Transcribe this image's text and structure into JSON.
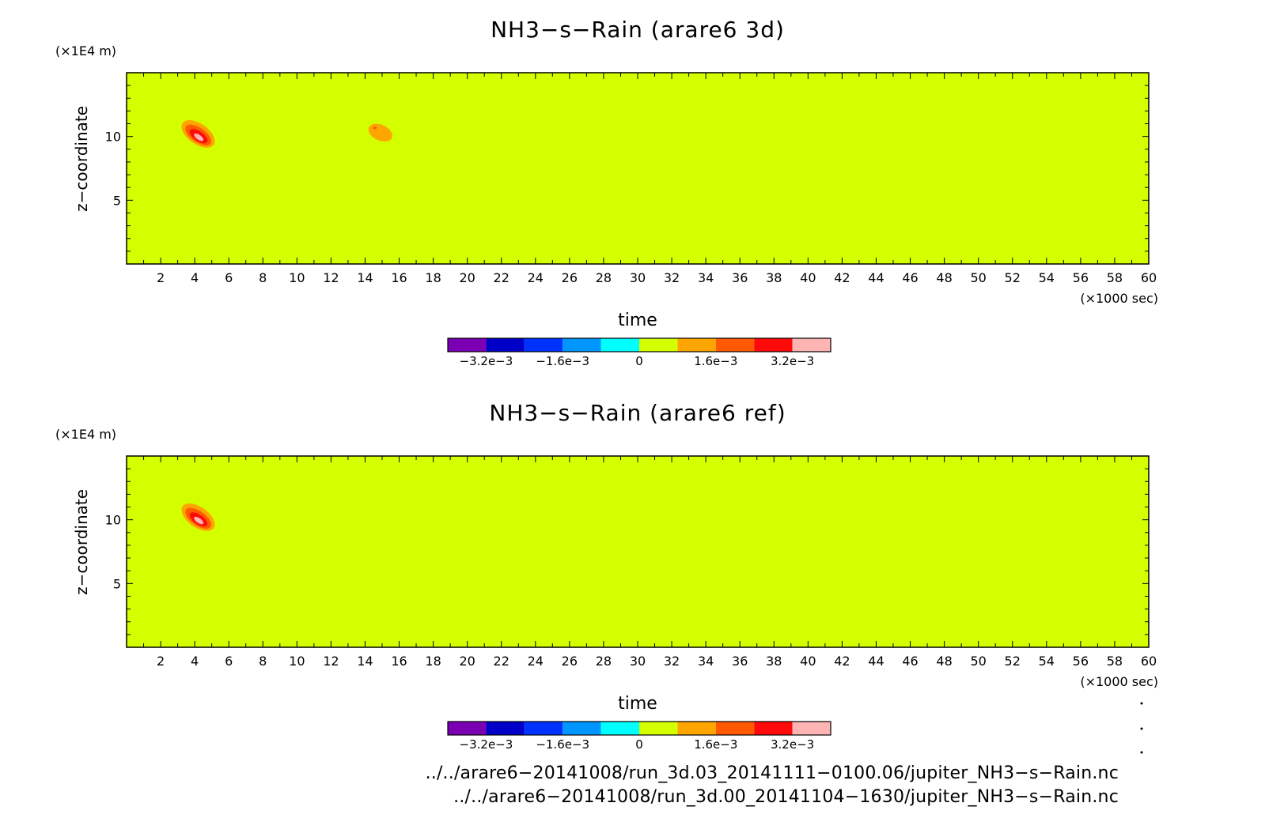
{
  "colors": {
    "background": "#d4ff00",
    "levels": [
      "#7b00b4",
      "#0000c8",
      "#0032ff",
      "#0096ff",
      "#00ffff",
      "#d4ff00",
      "#ffa500",
      "#ff5a00",
      "#ff0a0a",
      "#ffb4b4"
    ]
  },
  "chart_data": [
    {
      "type": "heatmap",
      "title": "NH3−s−Rain (arare6 3d)",
      "xlabel": "time",
      "ylabel": "z−coordinate",
      "x_unit": "(×1000 sec)",
      "y_unit": "(×1E4 m)",
      "xlim": [
        0,
        60
      ],
      "ylim": [
        0,
        15
      ],
      "x_ticks": [
        "2",
        "4",
        "6",
        "8",
        "10",
        "12",
        "14",
        "16",
        "18",
        "20",
        "22",
        "24",
        "26",
        "28",
        "30",
        "32",
        "34",
        "36",
        "38",
        "40",
        "42",
        "44",
        "46",
        "48",
        "50",
        "52",
        "54",
        "56",
        "58",
        "60"
      ],
      "y_ticks": [
        "5",
        "10"
      ],
      "colorbar_labels": [
        "−3.2e−3",
        "−1.6e−3",
        "0",
        "1.6e−3",
        "3.2e−3"
      ],
      "field_value": "0",
      "features": [
        {
          "center": [
            4.2,
            10.2
          ],
          "peak": "3.2e−3"
        },
        {
          "center": [
            14.9,
            10.3
          ],
          "peak": "1.6e−3"
        }
      ]
    },
    {
      "type": "heatmap",
      "title": "NH3−s−Rain (arare6 ref)",
      "xlabel": "time",
      "ylabel": "z−coordinate",
      "x_unit": "(×1000 sec)",
      "y_unit": "(×1E4 m)",
      "xlim": [
        0,
        60
      ],
      "ylim": [
        0,
        15
      ],
      "x_ticks": [
        "2",
        "4",
        "6",
        "8",
        "10",
        "12",
        "14",
        "16",
        "18",
        "20",
        "22",
        "24",
        "26",
        "28",
        "30",
        "32",
        "34",
        "36",
        "38",
        "40",
        "42",
        "44",
        "46",
        "48",
        "50",
        "52",
        "54",
        "56",
        "58",
        "60"
      ],
      "y_ticks": [
        "5",
        "10"
      ],
      "colorbar_labels": [
        "−3.2e−3",
        "−1.6e−3",
        "0",
        "1.6e−3",
        "3.2e−3"
      ],
      "field_value": "0",
      "features": [
        {
          "center": [
            4.2,
            10.2
          ],
          "peak": "3.2e−3"
        }
      ]
    }
  ],
  "files": [
    "../../arare6−20141008/run_3d.03_20141111−0100.06/jupiter_NH3−s−Rain.nc",
    "../../arare6−20141008/run_3d.00_20141104−1630/jupiter_NH3−s−Rain.nc"
  ]
}
